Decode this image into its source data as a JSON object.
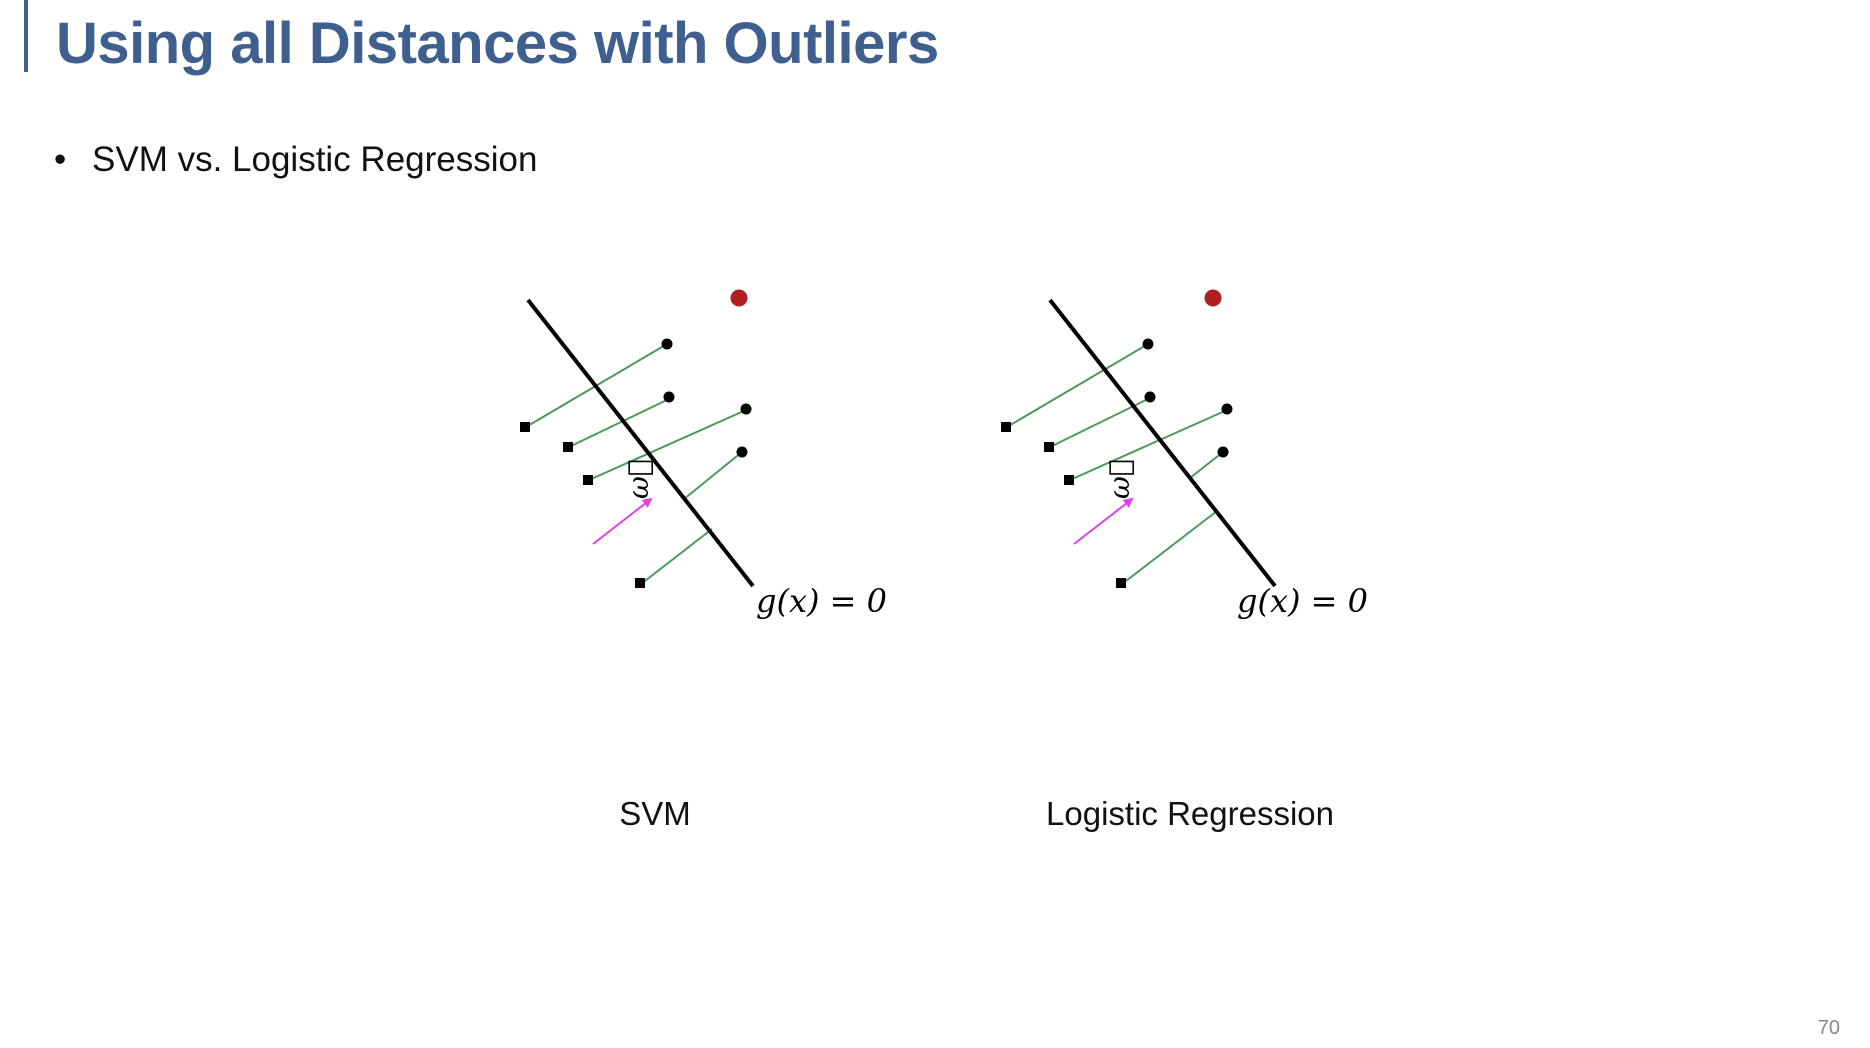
{
  "slide": {
    "title": "Using all Distances with Outliers",
    "bullet_symbol": "•",
    "bullet_text": "SVM vs. Logistic Regression",
    "page_number": "70"
  },
  "diagrams": [
    {
      "caption": "SVM",
      "boundary_label": "g(x) = 0",
      "normal_label": "ω⃗"
    },
    {
      "caption": "Logistic Regression",
      "boundary_label": "g(x) = 0",
      "normal_label": "ω⃗"
    }
  ],
  "colors": {
    "title": "#3f5f8f",
    "distance_line": "#4a9a5a",
    "normal_vector": "#e040e8",
    "outlier_point": "#b02020",
    "points": "#000000"
  }
}
